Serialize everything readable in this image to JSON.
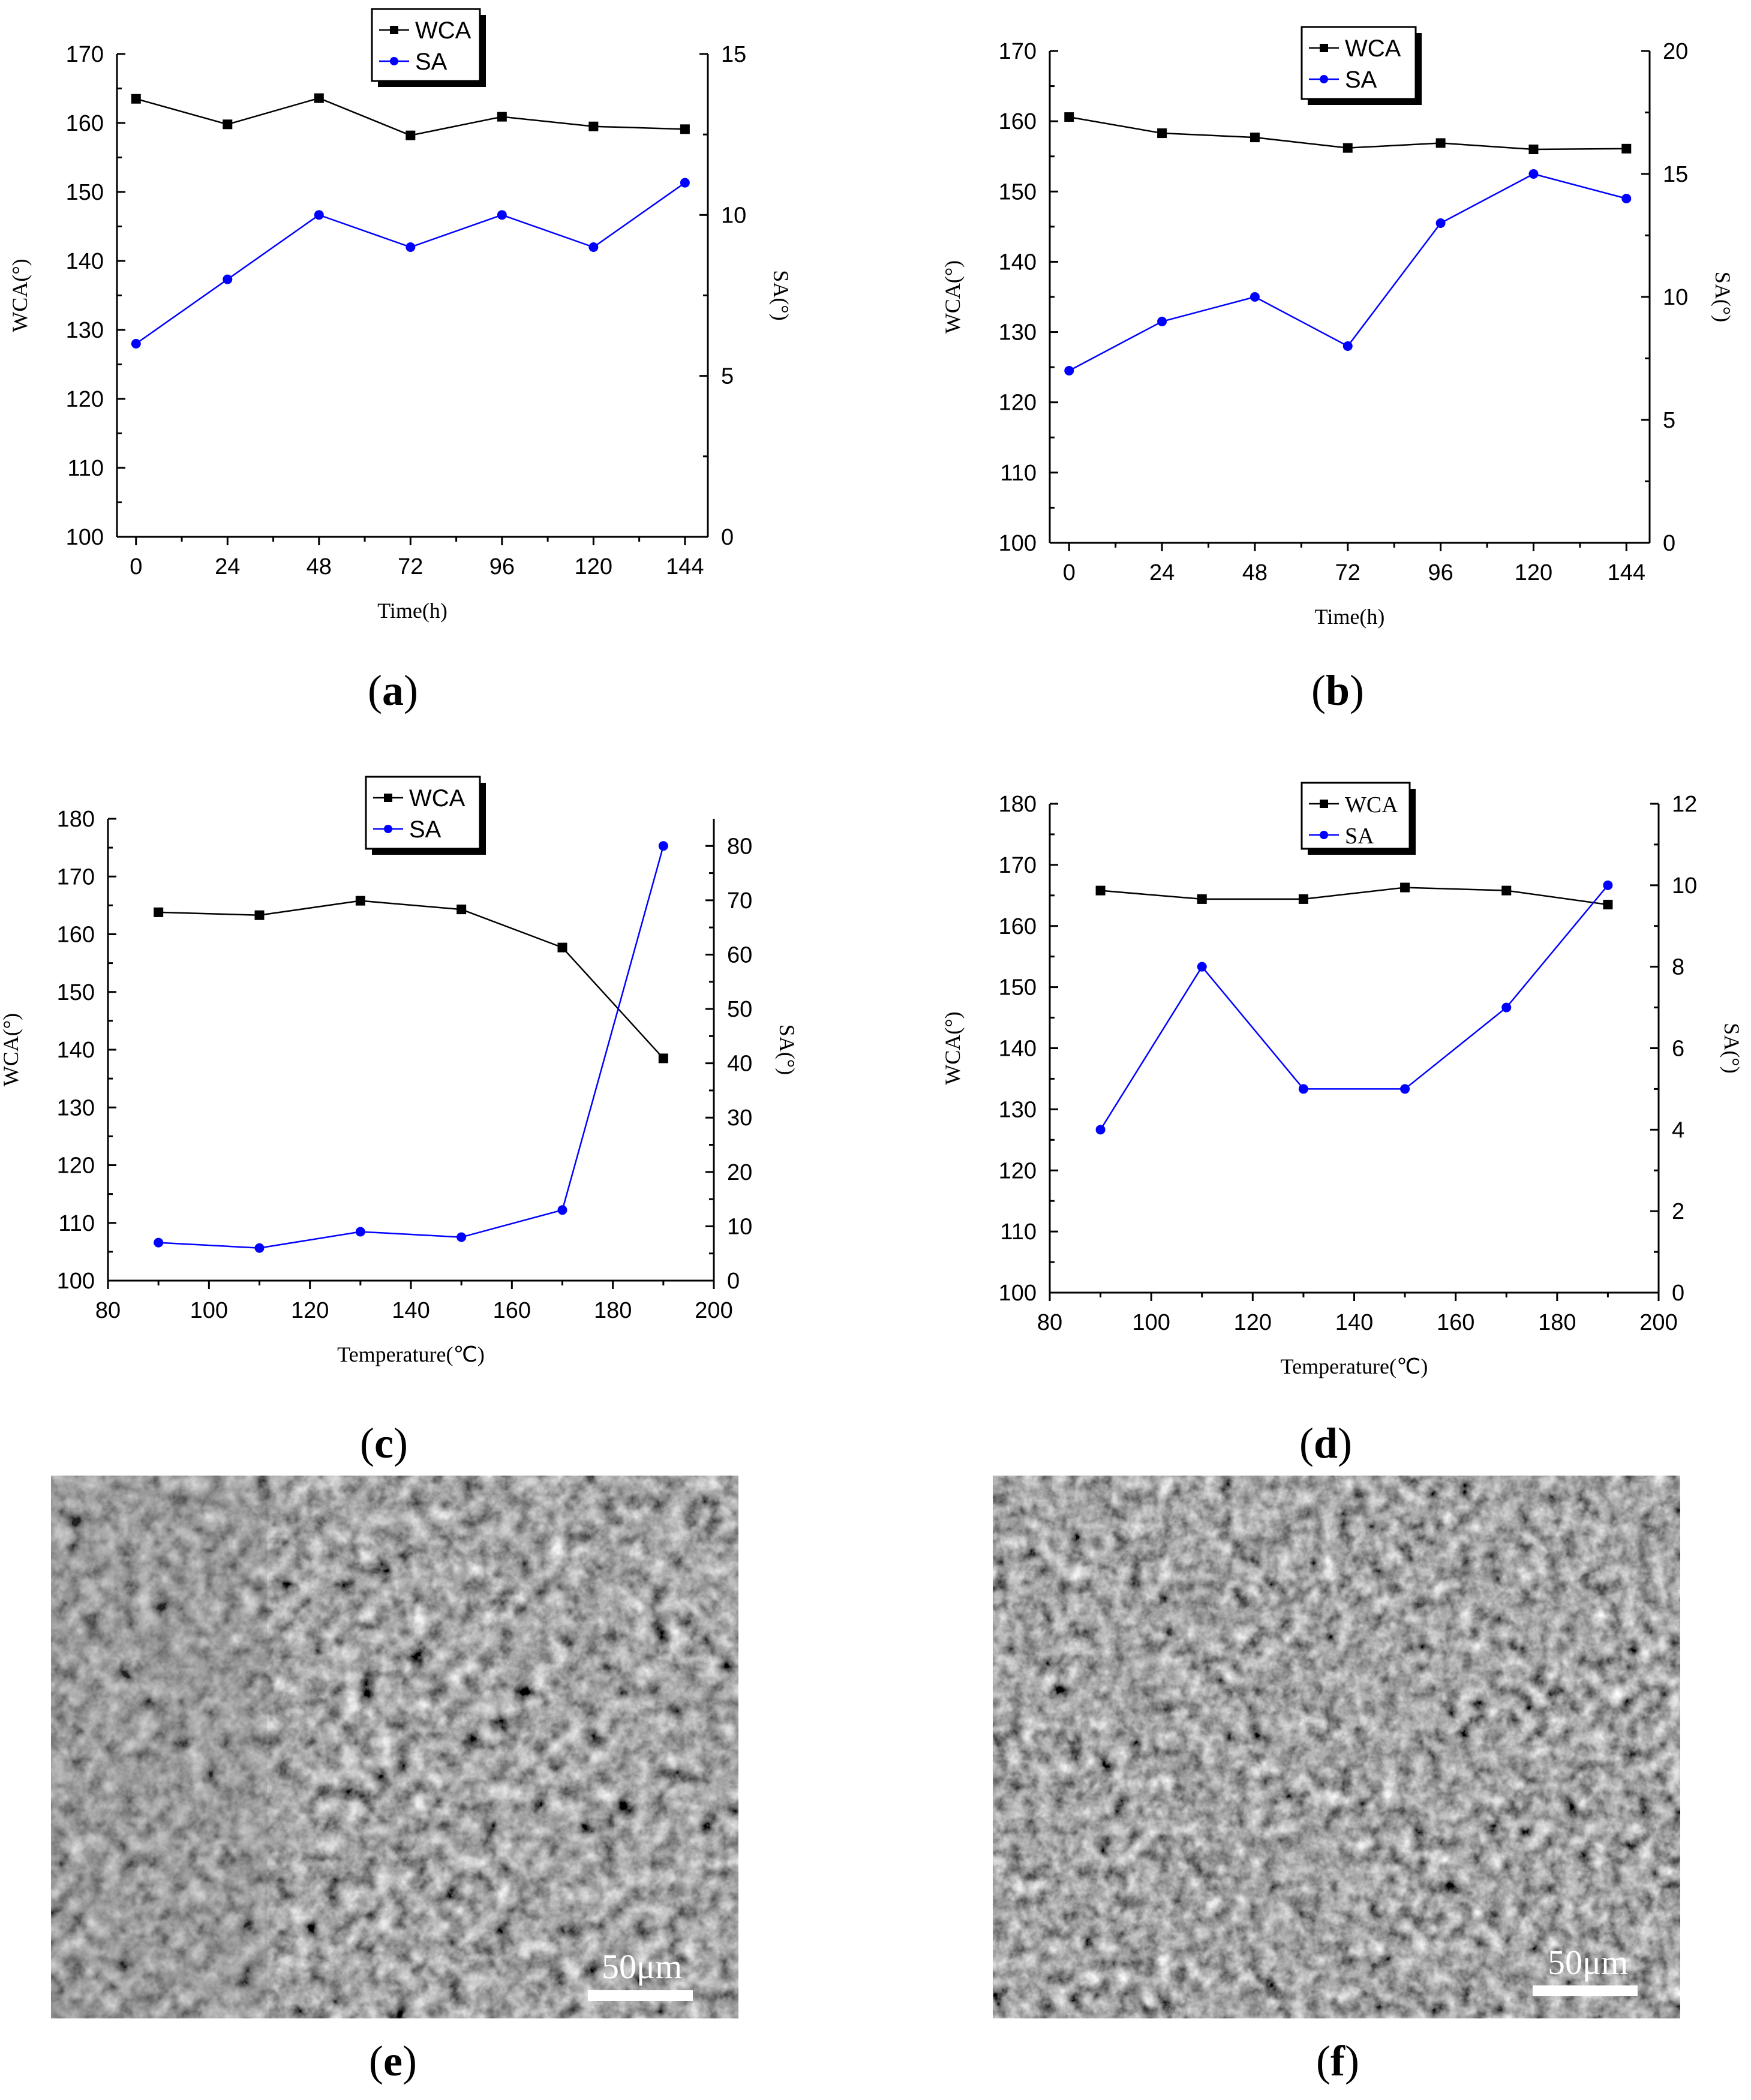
{
  "chart_data": [
    {
      "id": "a",
      "type": "line",
      "x": [
        0,
        24,
        48,
        72,
        96,
        120,
        144
      ],
      "xlabel": "Time(h)",
      "ylabel": "WCA(°)",
      "y2label": "SA(°)",
      "xlim": [
        -5,
        150
      ],
      "xticks": [
        0,
        24,
        48,
        72,
        96,
        120,
        144
      ],
      "ylim": [
        100,
        170
      ],
      "yticks": [
        100,
        110,
        120,
        130,
        140,
        150,
        160,
        170
      ],
      "y2lim": [
        0,
        15
      ],
      "y2ticks": [
        0,
        5,
        10,
        15
      ],
      "series": [
        {
          "name": "WCA",
          "axis": "left",
          "color": "#000000",
          "marker": "square",
          "values": [
            163.5,
            159.8,
            163.6,
            158.2,
            160.9,
            159.5,
            159.1
          ]
        },
        {
          "name": "SA",
          "axis": "right",
          "color": "#0000ff",
          "marker": "circle",
          "values": [
            6,
            8,
            10,
            9,
            10,
            9,
            11
          ]
        }
      ],
      "legend_font": "sans"
    },
    {
      "id": "b",
      "type": "line",
      "x": [
        0,
        24,
        48,
        72,
        96,
        120,
        144
      ],
      "xlabel": "Time(h)",
      "ylabel": "WCA(°)",
      "y2label": "SA(°)",
      "xlim": [
        -5,
        150
      ],
      "xticks": [
        0,
        24,
        48,
        72,
        96,
        120,
        144
      ],
      "ylim": [
        100,
        170
      ],
      "yticks": [
        100,
        110,
        120,
        130,
        140,
        150,
        160,
        170
      ],
      "y2lim": [
        0,
        20
      ],
      "y2ticks": [
        0,
        5,
        10,
        15,
        20
      ],
      "series": [
        {
          "name": "WCA",
          "axis": "left",
          "color": "#000000",
          "marker": "square",
          "values": [
            160.6,
            158.3,
            157.7,
            156.2,
            156.9,
            156.0,
            156.1
          ]
        },
        {
          "name": "SA",
          "axis": "right",
          "color": "#0000ff",
          "marker": "circle",
          "values": [
            7,
            9,
            10,
            8,
            13,
            15,
            14
          ]
        }
      ],
      "legend_font": "sans"
    },
    {
      "id": "c",
      "type": "line",
      "x": [
        90,
        110,
        130,
        150,
        170,
        190
      ],
      "xlabel": "Temperature(℃)",
      "ylabel": "WCA(°)",
      "y2label": "SA(°)",
      "xlim": [
        80,
        200
      ],
      "xticks": [
        80,
        100,
        120,
        140,
        160,
        180,
        200
      ],
      "ylim": [
        100,
        180
      ],
      "yticks": [
        100,
        110,
        120,
        130,
        140,
        150,
        160,
        170,
        180
      ],
      "y2lim": [
        0,
        85
      ],
      "y2ticks": [
        0,
        10,
        20,
        30,
        40,
        50,
        60,
        70,
        80
      ],
      "series": [
        {
          "name": "WCA",
          "axis": "left",
          "color": "#000000",
          "marker": "square",
          "values": [
            163.8,
            163.3,
            165.8,
            164.3,
            157.7,
            138.5
          ]
        },
        {
          "name": "SA",
          "axis": "right",
          "color": "#0000ff",
          "marker": "circle",
          "values": [
            7,
            6,
            9,
            8,
            13,
            80
          ]
        }
      ],
      "legend_font": "sans"
    },
    {
      "id": "d",
      "type": "line",
      "x": [
        90,
        110,
        130,
        150,
        170,
        190
      ],
      "xlabel": "Temperature(℃)",
      "ylabel": "WCA(°)",
      "y2label": "SA(°)",
      "xlim": [
        80,
        200
      ],
      "xticks": [
        80,
        100,
        120,
        140,
        160,
        180,
        200
      ],
      "ylim": [
        100,
        180
      ],
      "yticks": [
        100,
        110,
        120,
        130,
        140,
        150,
        160,
        170,
        180
      ],
      "y2lim": [
        0,
        12
      ],
      "y2ticks": [
        0,
        2,
        4,
        6,
        8,
        10,
        12
      ],
      "series": [
        {
          "name": "WCA",
          "axis": "left",
          "color": "#000000",
          "marker": "square",
          "values": [
            165.8,
            164.4,
            164.4,
            166.3,
            165.8,
            163.5
          ]
        },
        {
          "name": "SA",
          "axis": "right",
          "color": "#0000ff",
          "marker": "circle",
          "values": [
            4,
            8,
            5,
            5,
            7,
            10
          ]
        }
      ],
      "legend_font": "serif"
    }
  ],
  "panels": {
    "a": "a",
    "b": "b",
    "c": "c",
    "d": "d",
    "e": "e",
    "f": "f",
    "open": "(",
    "close": ")"
  },
  "sem": {
    "e_scale": "50μm",
    "f_scale": "50μm"
  }
}
